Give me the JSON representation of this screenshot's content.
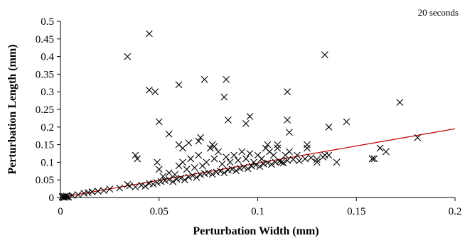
{
  "chart_data": {
    "type": "scatter",
    "title": "",
    "annotation": "20 seconds",
    "xlabel": "Perturbation Width (mm)",
    "ylabel": "Perturbation Length (mm)",
    "xlim": [
      0,
      0.2
    ],
    "ylim": [
      0,
      0.5
    ],
    "x_ticks": [
      "0",
      "0.05",
      "0.1",
      "0.15",
      "0.2"
    ],
    "y_ticks": [
      "0",
      "0.05",
      "0.1",
      "0.15",
      "0.2",
      "0.25",
      "0.3",
      "0.35",
      "0.4",
      "0.45",
      "0.5"
    ],
    "grid": false,
    "marker": "x",
    "trendline": {
      "type": "linear",
      "x": [
        0,
        0.2
      ],
      "y": [
        0,
        0.195
      ],
      "color": "#c00000"
    },
    "series": [
      {
        "points": [
          [
            0.001,
            0.001
          ],
          [
            0.002,
            0.003
          ],
          [
            0.003,
            0.002
          ],
          [
            0.004,
            0.001
          ],
          [
            0.002,
            0.0
          ],
          [
            0.003,
            0.004
          ],
          [
            0.001,
            0.003
          ],
          [
            0.004,
            0.002
          ],
          [
            0.006,
            0.006
          ],
          [
            0.009,
            0.008
          ],
          [
            0.012,
            0.012
          ],
          [
            0.014,
            0.014
          ],
          [
            0.016,
            0.016
          ],
          [
            0.019,
            0.018
          ],
          [
            0.022,
            0.02
          ],
          [
            0.025,
            0.024
          ],
          [
            0.03,
            0.027
          ],
          [
            0.034,
            0.037
          ],
          [
            0.035,
            0.033
          ],
          [
            0.038,
            0.03
          ],
          [
            0.041,
            0.035
          ],
          [
            0.043,
            0.032
          ],
          [
            0.045,
            0.04
          ],
          [
            0.047,
            0.038
          ],
          [
            0.049,
            0.042
          ],
          [
            0.051,
            0.045
          ],
          [
            0.053,
            0.048
          ],
          [
            0.055,
            0.051
          ],
          [
            0.057,
            0.045
          ],
          [
            0.059,
            0.052
          ],
          [
            0.061,
            0.055
          ],
          [
            0.063,
            0.05
          ],
          [
            0.065,
            0.058
          ],
          [
            0.067,
            0.062
          ],
          [
            0.069,
            0.057
          ],
          [
            0.071,
            0.065
          ],
          [
            0.073,
            0.068
          ],
          [
            0.075,
            0.07
          ],
          [
            0.077,
            0.066
          ],
          [
            0.079,
            0.072
          ],
          [
            0.081,
            0.075
          ],
          [
            0.083,
            0.07
          ],
          [
            0.085,
            0.078
          ],
          [
            0.087,
            0.08
          ],
          [
            0.089,
            0.076
          ],
          [
            0.091,
            0.083
          ],
          [
            0.093,
            0.086
          ],
          [
            0.095,
            0.082
          ],
          [
            0.097,
            0.089
          ],
          [
            0.099,
            0.092
          ],
          [
            0.101,
            0.088
          ],
          [
            0.103,
            0.095
          ],
          [
            0.105,
            0.098
          ],
          [
            0.107,
            0.094
          ],
          [
            0.109,
            0.1
          ],
          [
            0.111,
            0.103
          ],
          [
            0.113,
            0.098
          ],
          [
            0.115,
            0.105
          ],
          [
            0.118,
            0.108
          ],
          [
            0.121,
            0.104
          ],
          [
            0.124,
            0.11
          ],
          [
            0.127,
            0.113
          ],
          [
            0.13,
            0.108
          ],
          [
            0.133,
            0.115
          ],
          [
            0.136,
            0.12
          ],
          [
            0.05,
            0.08
          ],
          [
            0.052,
            0.06
          ],
          [
            0.055,
            0.07
          ],
          [
            0.058,
            0.065
          ],
          [
            0.06,
            0.09
          ],
          [
            0.062,
            0.1
          ],
          [
            0.064,
            0.08
          ],
          [
            0.066,
            0.11
          ],
          [
            0.068,
            0.085
          ],
          [
            0.07,
            0.12
          ],
          [
            0.072,
            0.09
          ],
          [
            0.074,
            0.1
          ],
          [
            0.076,
            0.14
          ],
          [
            0.078,
            0.11
          ],
          [
            0.08,
            0.13
          ],
          [
            0.082,
            0.095
          ],
          [
            0.084,
            0.115
          ],
          [
            0.086,
            0.1
          ],
          [
            0.088,
            0.12
          ],
          [
            0.09,
            0.105
          ],
          [
            0.092,
            0.13
          ],
          [
            0.094,
            0.11
          ],
          [
            0.096,
            0.125
          ],
          [
            0.098,
            0.1
          ],
          [
            0.1,
            0.12
          ],
          [
            0.102,
            0.11
          ],
          [
            0.104,
            0.14
          ],
          [
            0.106,
            0.13
          ],
          [
            0.108,
            0.12
          ],
          [
            0.11,
            0.15
          ],
          [
            0.112,
            0.1
          ],
          [
            0.114,
            0.12
          ],
          [
            0.116,
            0.13
          ],
          [
            0.12,
            0.12
          ],
          [
            0.125,
            0.14
          ],
          [
            0.038,
            0.12
          ],
          [
            0.039,
            0.11
          ],
          [
            0.049,
            0.1
          ],
          [
            0.055,
            0.18
          ],
          [
            0.06,
            0.15
          ],
          [
            0.062,
            0.14
          ],
          [
            0.065,
            0.155
          ],
          [
            0.07,
            0.16
          ],
          [
            0.071,
            0.17
          ],
          [
            0.077,
            0.15
          ],
          [
            0.078,
            0.145
          ],
          [
            0.085,
            0.22
          ],
          [
            0.094,
            0.21
          ],
          [
            0.096,
            0.23
          ],
          [
            0.105,
            0.15
          ],
          [
            0.11,
            0.14
          ],
          [
            0.115,
            0.22
          ],
          [
            0.116,
            0.185
          ],
          [
            0.125,
            0.15
          ],
          [
            0.13,
            0.1
          ],
          [
            0.134,
            0.12
          ],
          [
            0.136,
            0.2
          ],
          [
            0.14,
            0.1
          ],
          [
            0.145,
            0.215
          ],
          [
            0.158,
            0.11
          ],
          [
            0.159,
            0.11
          ],
          [
            0.162,
            0.14
          ],
          [
            0.165,
            0.13
          ],
          [
            0.172,
            0.27
          ],
          [
            0.181,
            0.17
          ],
          [
            0.034,
            0.4
          ],
          [
            0.045,
            0.465
          ],
          [
            0.045,
            0.305
          ],
          [
            0.048,
            0.3
          ],
          [
            0.05,
            0.215
          ],
          [
            0.06,
            0.32
          ],
          [
            0.073,
            0.335
          ],
          [
            0.083,
            0.285
          ],
          [
            0.084,
            0.335
          ],
          [
            0.115,
            0.3
          ],
          [
            0.134,
            0.405
          ]
        ]
      }
    ]
  }
}
